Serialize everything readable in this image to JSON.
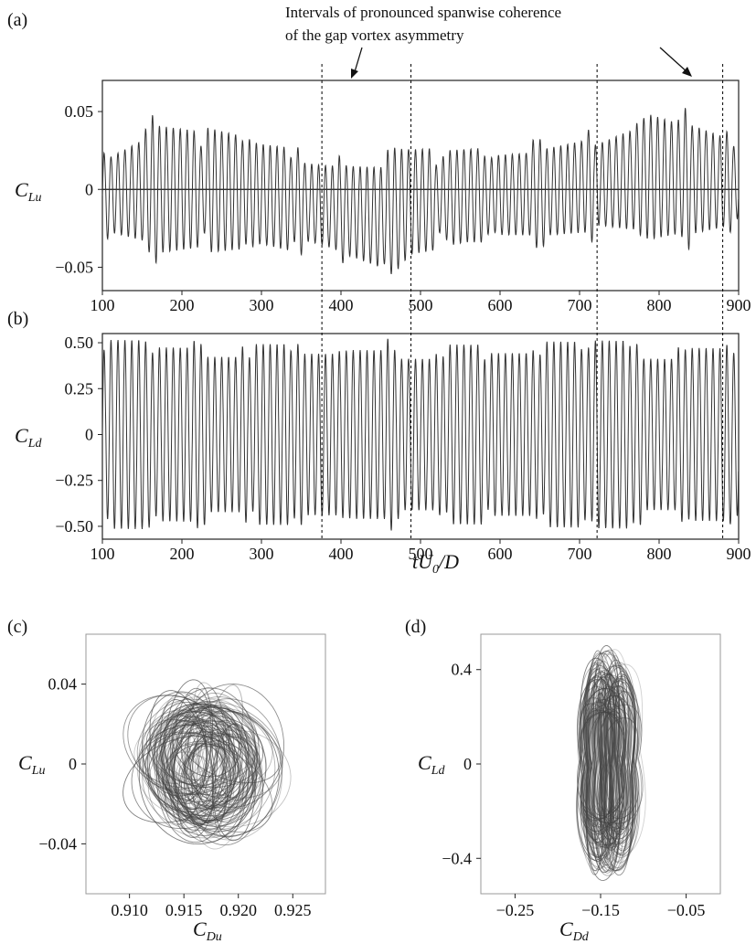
{
  "annotation": {
    "line1": "Intervals of pronounced spanwise coherence",
    "line2": "of the gap vortex asymmetry"
  },
  "vertical_markers_x": [
    376,
    488,
    722,
    880
  ],
  "colors": {
    "trace": "#333333",
    "phase": "#444444",
    "frame": "#222222",
    "marker": "#000000"
  },
  "chart_data": [
    {
      "panel": "(a)",
      "type": "line",
      "title": "",
      "ylabel": "C_Lu",
      "xlabel": "",
      "xlim": [
        100,
        900
      ],
      "ylim": [
        -0.065,
        0.07
      ],
      "x_ticks": [
        100,
        200,
        300,
        400,
        500,
        600,
        700,
        800,
        900
      ],
      "y_ticks": [
        -0.05,
        0,
        0.05
      ],
      "y_tick_labels": [
        "−0.05",
        "0",
        "0.05"
      ],
      "zero_line": true,
      "signal": {
        "description_period": 8.7,
        "envelope_points": [
          {
            "x": 100,
            "amp": 0.026,
            "mean": -0.004
          },
          {
            "x": 160,
            "amp": 0.04,
            "mean": 0.0
          },
          {
            "x": 220,
            "amp": 0.036,
            "mean": 0.0
          },
          {
            "x": 300,
            "amp": 0.03,
            "mean": -0.003
          },
          {
            "x": 376,
            "amp": 0.032,
            "mean": -0.01
          },
          {
            "x": 450,
            "amp": 0.04,
            "mean": -0.018
          },
          {
            "x": 488,
            "amp": 0.03,
            "mean": -0.008
          },
          {
            "x": 560,
            "amp": 0.028,
            "mean": -0.004
          },
          {
            "x": 640,
            "amp": 0.03,
            "mean": -0.003
          },
          {
            "x": 722,
            "amp": 0.033,
            "mean": 0.003
          },
          {
            "x": 790,
            "amp": 0.045,
            "mean": 0.008
          },
          {
            "x": 850,
            "amp": 0.036,
            "mean": 0.006
          },
          {
            "x": 900,
            "amp": 0.028,
            "mean": 0.004
          }
        ]
      }
    },
    {
      "panel": "(b)",
      "type": "line",
      "title": "",
      "ylabel": "C_Ld",
      "xlabel": "tU_0/D",
      "xlim": [
        100,
        900
      ],
      "ylim": [
        -0.57,
        0.55
      ],
      "x_ticks": [
        100,
        200,
        300,
        400,
        500,
        600,
        700,
        800,
        900
      ],
      "y_ticks": [
        -0.5,
        -0.25,
        0,
        0.25,
        0.5
      ],
      "y_tick_labels": [
        "−0.50",
        "−0.25",
        "0",
        "0.25",
        "0.50"
      ],
      "signal": {
        "description_period": 8.7,
        "amplitude": 0.45,
        "amplitude_range": [
          0.41,
          0.53
        ]
      }
    },
    {
      "panel": "(c)",
      "type": "scatter",
      "title": "",
      "xlabel": "C_Du",
      "ylabel": "C_Lu",
      "xlim": [
        0.906,
        0.928
      ],
      "ylim": [
        -0.065,
        0.065
      ],
      "x_ticks": [
        0.91,
        0.915,
        0.92,
        0.925
      ],
      "x_tick_labels": [
        "0.910",
        "0.915",
        "0.920",
        "0.925"
      ],
      "y_ticks": [
        -0.04,
        0,
        0.04
      ],
      "y_tick_labels": [
        "−0.04",
        "0",
        "0.04"
      ],
      "phase_portrait": {
        "center": [
          0.917,
          0.0
        ],
        "spread": [
          0.0045,
          0.03
        ]
      }
    },
    {
      "panel": "(d)",
      "type": "scatter",
      "title": "",
      "xlabel": "C_Dd",
      "ylabel": "C_Ld",
      "xlim": [
        -0.29,
        -0.01
      ],
      "ylim": [
        -0.55,
        0.55
      ],
      "x_ticks": [
        -0.25,
        -0.15,
        -0.05
      ],
      "x_tick_labels": [
        "−0.25",
        "−0.15",
        "−0.05"
      ],
      "y_ticks": [
        -0.4,
        0,
        0.4
      ],
      "y_tick_labels": [
        "−0.4",
        "0",
        "0.4"
      ],
      "phase_portrait": {
        "center": [
          -0.14,
          0.0
        ],
        "spread": [
          0.03,
          0.42
        ]
      }
    }
  ]
}
